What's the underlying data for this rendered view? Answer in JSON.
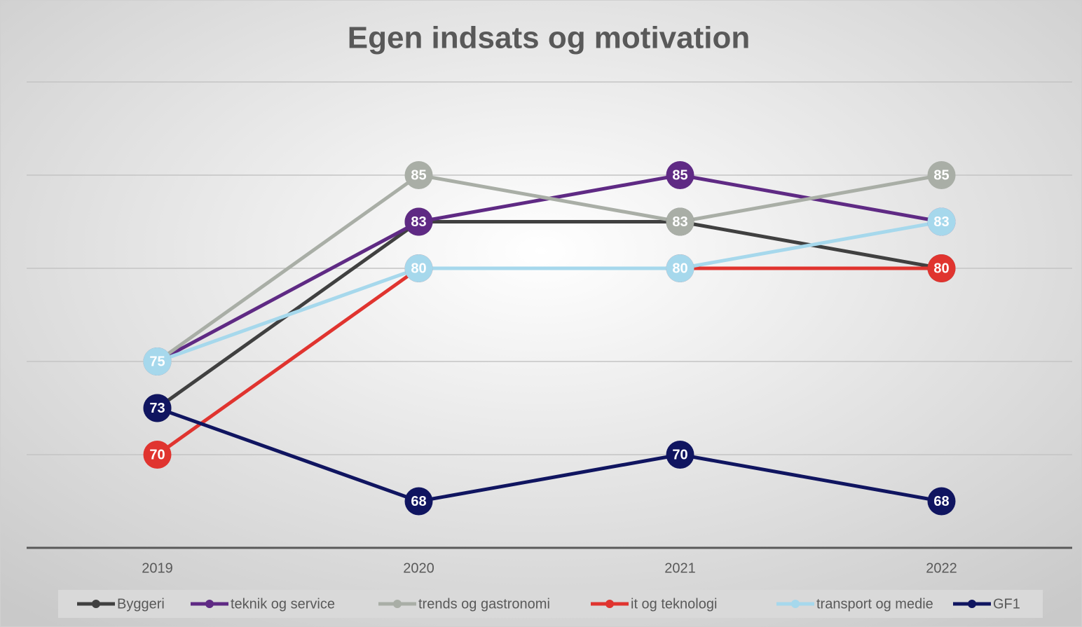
{
  "chart_data": {
    "type": "line",
    "title": "Egen indsats og motivation",
    "categories": [
      "2019",
      "2020",
      "2021",
      "2022"
    ],
    "ylim": [
      65,
      90
    ],
    "yticks": [
      65,
      70,
      75,
      80,
      85,
      90
    ],
    "grid": true,
    "legend": "bottom",
    "series": [
      {
        "name": "Byggeri",
        "color": "#404040",
        "values": [
          72.5,
          82.5,
          82.5,
          80
        ],
        "value_labels": [
          "73",
          "83",
          "83",
          "80"
        ]
      },
      {
        "name": "teknik og service",
        "color": "#5f2a84",
        "values": [
          75,
          82.5,
          85,
          82.5
        ],
        "value_labels": [
          "75",
          "83",
          "85",
          "83"
        ]
      },
      {
        "name": "trends og gastronomi",
        "color": "#a9aea6",
        "values": [
          75,
          85,
          82.5,
          85
        ],
        "value_labels": [
          "75",
          "85",
          "83",
          "85"
        ]
      },
      {
        "name": "it og teknologi",
        "color": "#e0342f",
        "values": [
          70,
          80,
          80,
          80
        ],
        "value_labels": [
          "70",
          "80",
          "80",
          "80"
        ]
      },
      {
        "name": "transport og medie",
        "color": "#a6d8ec",
        "values": [
          75,
          80,
          80,
          82.5
        ],
        "value_labels": [
          "75",
          "80",
          "80",
          "83"
        ]
      },
      {
        "name": "GF1",
        "color": "#101560",
        "values": [
          72.5,
          67.5,
          70,
          67.5
        ],
        "value_labels": [
          "73",
          "68",
          "70",
          "68"
        ]
      }
    ]
  }
}
